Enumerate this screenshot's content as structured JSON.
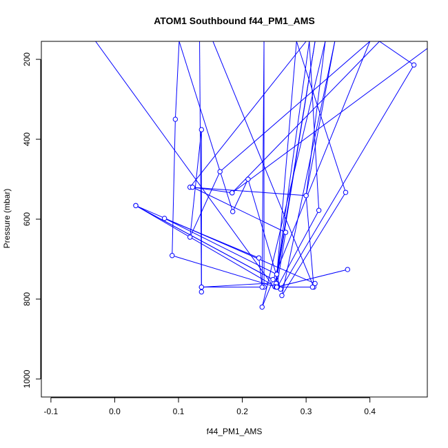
{
  "chart_data": {
    "type": "line",
    "title": "ATOM1 Southbound f44_PM1_AMS",
    "xlabel": "f44_PM1_AMS",
    "ylabel": "Pressure (mbar)",
    "xlim": [
      -0.115,
      0.49
    ],
    "ylim": [
      1045,
      155
    ],
    "y_reversed": true,
    "xticks": [
      "-0.1",
      "0.0",
      "0.1",
      "0.2",
      "0.3",
      "0.4"
    ],
    "yticks": [
      "200",
      "400",
      "600",
      "800",
      "1000"
    ],
    "grid": false,
    "series_color": "#0000ff",
    "marker": "open-circle",
    "series": [
      {
        "values": [
          {
            "x": -0.03,
            "y": 155,
            "point": false
          },
          {
            "x": 0.245,
            "y": 760,
            "point": false
          },
          {
            "x": 0.136,
            "y": 770
          },
          {
            "x": 0.136,
            "y": 376
          },
          {
            "x": 0.118,
            "y": 645
          },
          {
            "x": 0.165,
            "y": 481
          },
          {
            "x": 0.4,
            "y": 155,
            "point": false
          },
          {
            "x": 0.231,
            "y": 820
          },
          {
            "x": 0.33,
            "y": 155,
            "point": false
          },
          {
            "x": 0.3,
            "y": 541
          },
          {
            "x": 0.345,
            "y": 155,
            "point": false
          },
          {
            "x": 0.262,
            "y": 791
          },
          {
            "x": 0.362,
            "y": 533
          },
          {
            "x": 0.285,
            "y": 155,
            "point": false
          },
          {
            "x": 0.253,
            "y": 761
          },
          {
            "x": 0.314,
            "y": 155,
            "point": false
          },
          {
            "x": 0.251,
            "y": 769
          },
          {
            "x": 0.09,
            "y": 691
          },
          {
            "x": 0.095,
            "y": 350
          },
          {
            "x": 0.101,
            "y": 155,
            "point": false
          },
          {
            "x": 0.185,
            "y": 581
          },
          {
            "x": 0.209,
            "y": 500
          },
          {
            "x": 0.26,
            "y": 775
          },
          {
            "x": 0.469,
            "y": 214
          },
          {
            "x": 0.415,
            "y": 155,
            "point": false
          },
          {
            "x": 0.184,
            "y": 534
          },
          {
            "x": 0.505,
            "y": 155,
            "point": false
          },
          {
            "x": 0.3,
            "y": 155,
            "point": false
          },
          {
            "x": 0.118,
            "y": 520
          },
          {
            "x": 0.3,
            "y": 541
          },
          {
            "x": 0.312,
            "y": 770
          },
          {
            "x": 0.154,
            "y": 155,
            "point": false
          },
          {
            "x": 0.133,
            "y": 155,
            "point": false
          },
          {
            "x": 0.136,
            "y": 782
          },
          {
            "x": 0.136,
            "y": 770
          },
          {
            "x": 0.234,
            "y": 770
          },
          {
            "x": 0.234,
            "y": 155,
            "point": false
          },
          {
            "x": 0.231,
            "y": 770
          },
          {
            "x": 0.226,
            "y": 697
          },
          {
            "x": 0.078,
            "y": 598
          },
          {
            "x": 0.254,
            "y": 738
          },
          {
            "x": 0.305,
            "y": 155,
            "point": false
          },
          {
            "x": 0.32,
            "y": 578
          },
          {
            "x": 0.255,
            "y": 770
          },
          {
            "x": 0.31,
            "y": 770
          },
          {
            "x": 0.314,
            "y": 761
          },
          {
            "x": 0.033,
            "y": 566
          },
          {
            "x": 0.248,
            "y": 751
          },
          {
            "x": 0.033,
            "y": 566
          },
          {
            "x": 0.253,
            "y": 770
          },
          {
            "x": 0.365,
            "y": 726
          },
          {
            "x": 0.254,
            "y": 770
          },
          {
            "x": 0.268,
            "y": 633
          },
          {
            "x": 0.122,
            "y": 520
          },
          {
            "x": 0.184,
            "y": 534
          }
        ]
      }
    ]
  }
}
